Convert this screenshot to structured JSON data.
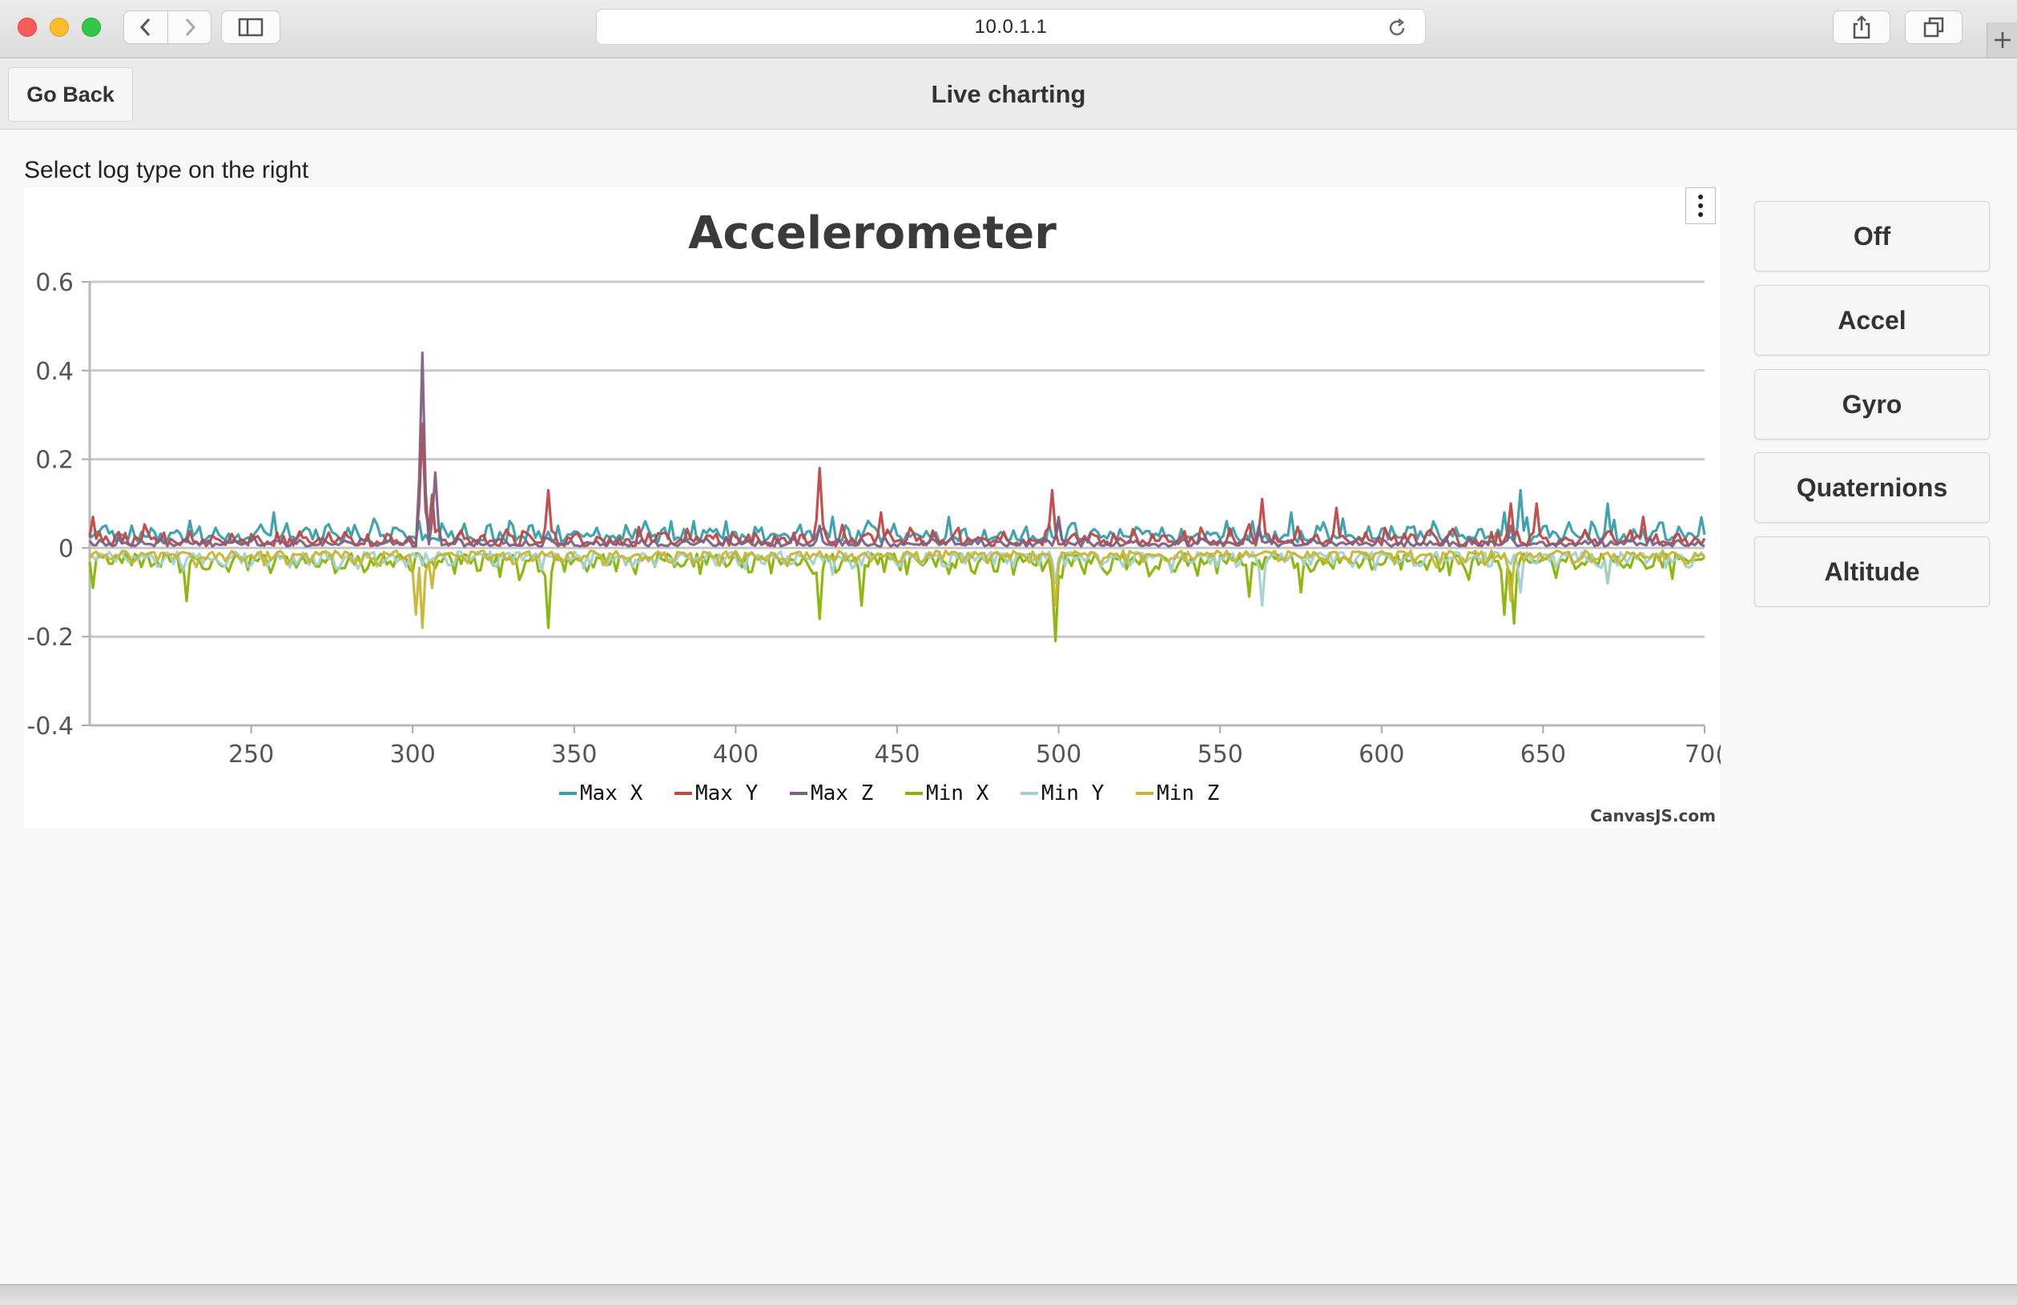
{
  "browser": {
    "url": "10.0.1.1",
    "icons": {
      "back": "chevron-left-icon",
      "forward": "chevron-right-icon",
      "sidebar": "sidebar-icon",
      "reload": "reload-icon",
      "share": "share-icon",
      "tabs": "tabs-icon",
      "new_tab": "plus-icon"
    }
  },
  "header": {
    "go_back_label": "Go Back",
    "title": "Live charting"
  },
  "instruction": "Select log type on the right",
  "log_buttons": [
    "Off",
    "Accel",
    "Gyro",
    "Quaternions",
    "Altitude"
  ],
  "chart_data": {
    "type": "line",
    "title": "Accelerometer",
    "credit": "CanvasJS.com",
    "xlim": [
      200,
      700
    ],
    "ylim": [
      -0.4,
      0.6
    ],
    "x_ticks": [
      250,
      300,
      350,
      400,
      450,
      500,
      550,
      600,
      650,
      "70("
    ],
    "y_ticks": [
      "0.6",
      "0.4",
      "0.2",
      "0",
      "-0.2",
      "-0.4"
    ],
    "grid": true,
    "legend_position": "bottom-center",
    "series": [
      {
        "name": "Max X",
        "color": "#369EAD",
        "sign": 1,
        "base": 0.03,
        "noise": 0.03,
        "spikes": [
          [
            257,
            0.08
          ],
          [
            302,
            0.06
          ],
          [
            345,
            0.05
          ],
          [
            380,
            0.06
          ],
          [
            397,
            0.06
          ],
          [
            430,
            0.07
          ],
          [
            466,
            0.07
          ],
          [
            500,
            0.06
          ],
          [
            560,
            0.06
          ],
          [
            572,
            0.08
          ],
          [
            638,
            0.08
          ],
          [
            643,
            0.13
          ],
          [
            670,
            0.1
          ]
        ]
      },
      {
        "name": "Max Y",
        "color": "#C24642",
        "sign": 1,
        "base": 0.01,
        "noise": 0.025,
        "spikes": [
          [
            201,
            0.07
          ],
          [
            303,
            0.28
          ],
          [
            306,
            0.12
          ],
          [
            342,
            0.13
          ],
          [
            426,
            0.18
          ],
          [
            445,
            0.08
          ],
          [
            498,
            0.13
          ],
          [
            563,
            0.11
          ],
          [
            586,
            0.09
          ],
          [
            640,
            0.1
          ],
          [
            648,
            0.1
          ],
          [
            681,
            0.07
          ]
        ]
      },
      {
        "name": "Max Z",
        "color": "#7F6084",
        "sign": 1,
        "base": 0.008,
        "noise": 0.012,
        "spikes": [
          [
            303,
            0.44
          ],
          [
            307,
            0.17
          ],
          [
            426,
            0.05
          ],
          [
            500,
            0.07
          ],
          [
            562,
            0.05
          ],
          [
            640,
            0.05
          ]
        ]
      },
      {
        "name": "Min X",
        "color": "#86B402",
        "sign": -1,
        "base": 0.03,
        "noise": 0.03,
        "spikes": [
          [
            201,
            0.09
          ],
          [
            230,
            0.12
          ],
          [
            342,
            0.18
          ],
          [
            426,
            0.16
          ],
          [
            439,
            0.13
          ],
          [
            499,
            0.21
          ],
          [
            559,
            0.11
          ],
          [
            575,
            0.1
          ],
          [
            638,
            0.15
          ],
          [
            641,
            0.17
          ],
          [
            670,
            0.08
          ]
        ]
      },
      {
        "name": "Min Y",
        "color": "#A2D1CF",
        "sign": -1,
        "base": 0.02,
        "noise": 0.025,
        "spikes": [
          [
            303,
            0.04
          ],
          [
            340,
            0.05
          ],
          [
            430,
            0.06
          ],
          [
            499,
            0.08
          ],
          [
            563,
            0.13
          ],
          [
            643,
            0.1
          ],
          [
            670,
            0.08
          ]
        ]
      },
      {
        "name": "Min Z",
        "color": "#C8B631",
        "sign": -1,
        "base": 0.015,
        "noise": 0.02,
        "spikes": [
          [
            301,
            0.15
          ],
          [
            303,
            0.18
          ],
          [
            306,
            0.09
          ],
          [
            499,
            0.13
          ],
          [
            640,
            0.12
          ]
        ]
      }
    ]
  }
}
